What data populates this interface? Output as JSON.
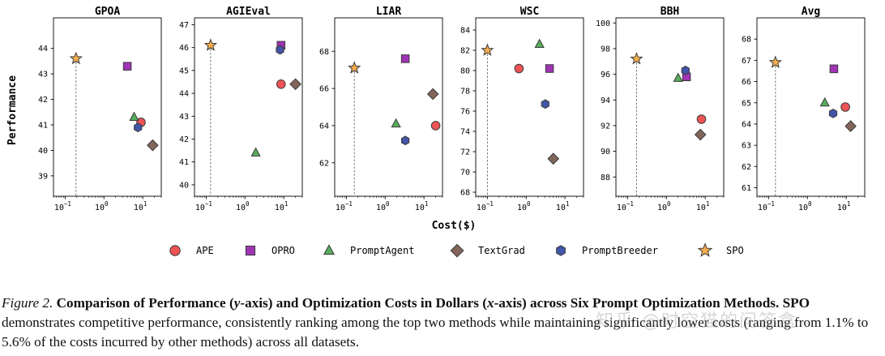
{
  "chart_data": {
    "type": "scatter",
    "xscale": "log",
    "xlim": [
      0.05,
      30
    ],
    "xticks": [
      {
        "v": 0.1,
        "b": "10",
        "e": "−1"
      },
      {
        "v": 1,
        "b": "10",
        "e": "0"
      },
      {
        "v": 10,
        "b": "10",
        "e": "1"
      }
    ],
    "ylabel": "Performance",
    "xlabel": "Cost($)",
    "grid": false,
    "legend_placement": "bottom",
    "reference_line": "SPO",
    "methods": [
      {
        "name": "APE",
        "color": "#ee5356",
        "marker": "circle"
      },
      {
        "name": "OPRO",
        "color": "#a034b4",
        "marker": "square"
      },
      {
        "name": "PromptAgent",
        "color": "#56ad5c",
        "marker": "triangle"
      },
      {
        "name": "TextGrad",
        "color": "#82655a",
        "marker": "diamond"
      },
      {
        "name": "PromptBreeder",
        "color": "#4156a8",
        "marker": "hexagon"
      },
      {
        "name": "SPO",
        "color": "#f5ad4d",
        "marker": "star"
      }
    ],
    "panels": [
      {
        "title": "GPOA",
        "ylim": [
          38.2,
          45.2
        ],
        "yticks": [
          39,
          40,
          41,
          42,
          43,
          44
        ],
        "points": {
          "APE": [
            9,
            41.1
          ],
          "OPRO": [
            4,
            43.3
          ],
          "PromptAgent": [
            6,
            41.3
          ],
          "TextGrad": [
            18,
            40.2
          ],
          "PromptBreeder": [
            7.5,
            40.9
          ],
          "SPO": [
            0.19,
            43.6
          ]
        }
      },
      {
        "title": "AGIEval",
        "ylim": [
          39.5,
          47.3
        ],
        "yticks": [
          40,
          41,
          42,
          43,
          44,
          45,
          46,
          47
        ],
        "points": {
          "APE": [
            8.5,
            44.4
          ],
          "OPRO": [
            8.5,
            46.1
          ],
          "PromptAgent": [
            1.9,
            41.4
          ],
          "TextGrad": [
            20,
            44.4
          ],
          "PromptBreeder": [
            8,
            45.9
          ],
          "SPO": [
            0.13,
            46.1
          ]
        }
      },
      {
        "title": "LIAR",
        "ylim": [
          60.2,
          69.8
        ],
        "yticks": [
          62,
          64,
          66,
          68
        ],
        "points": {
          "APE": [
            20,
            64.0
          ],
          "OPRO": [
            3.3,
            67.6
          ],
          "PromptAgent": [
            1.9,
            64.1
          ],
          "TextGrad": [
            17,
            65.7
          ],
          "PromptBreeder": [
            3.3,
            63.2
          ],
          "SPO": [
            0.16,
            67.1
          ]
        }
      },
      {
        "title": "WSC",
        "ylim": [
          67.6,
          85.2
        ],
        "yticks": [
          68,
          70,
          72,
          74,
          76,
          78,
          80,
          82,
          84
        ],
        "points": {
          "APE": [
            0.65,
            80.2
          ],
          "OPRO": [
            4,
            80.2
          ],
          "PromptAgent": [
            2.2,
            82.6
          ],
          "TextGrad": [
            5,
            71.3
          ],
          "PromptBreeder": [
            3.1,
            76.7
          ],
          "SPO": [
            0.1,
            82.0
          ]
        }
      },
      {
        "title": "BBH",
        "ylim": [
          86.5,
          100.4
        ],
        "yticks": [
          88,
          90,
          92,
          94,
          96,
          98,
          100
        ],
        "points": {
          "APE": [
            8,
            92.5
          ],
          "OPRO": [
            3.3,
            95.8
          ],
          "PromptAgent": [
            2,
            95.7
          ],
          "TextGrad": [
            7.5,
            91.3
          ],
          "PromptBreeder": [
            3.1,
            96.3
          ],
          "SPO": [
            0.17,
            97.2
          ]
        }
      },
      {
        "title": "Avg",
        "ylim": [
          60.6,
          69.0
        ],
        "yticks": [
          61,
          62,
          63,
          64,
          65,
          66,
          67,
          68
        ],
        "points": {
          "APE": [
            9.5,
            64.8
          ],
          "OPRO": [
            4.8,
            66.6
          ],
          "PromptAgent": [
            2.8,
            65.0
          ],
          "TextGrad": [
            13,
            63.9
          ],
          "PromptBreeder": [
            4.6,
            64.5
          ],
          "SPO": [
            0.15,
            66.9
          ]
        }
      }
    ]
  },
  "caption": {
    "figure_label": "Figure 2.",
    "title_part1": "Comparison of Performance (",
    "y_var": "y",
    "title_part2": "-axis) and Optimization Costs in Dollars (",
    "x_var": "x",
    "title_part3": "-axis) across Six Prompt Optimization Methods.",
    "spo": "SPO",
    "body": "demonstrates competitive performance, consistently ranking among the top two methods while maintaining significantly lower costs (ranging from 1.1% to 5.6% of the costs incurred by other methods) across all datasets."
  },
  "watermark": "知乎 @时空猫的问答盒"
}
